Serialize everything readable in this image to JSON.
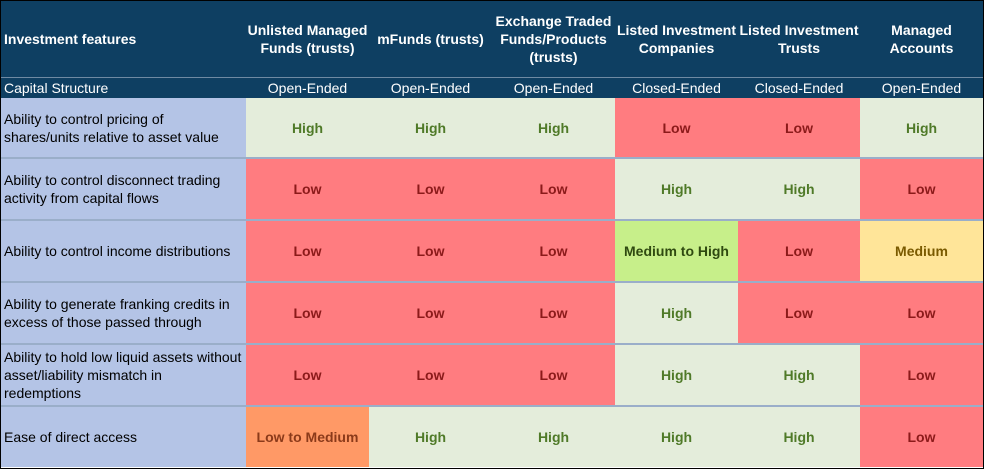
{
  "table": {
    "headers": [
      "Investment features",
      "Unlisted Managed Funds (trusts)",
      "mFunds (trusts)",
      "Exchange Traded Funds/Products (trusts)",
      "Listed Investment Companies",
      "Listed Investment Trusts",
      "Managed Accounts"
    ],
    "capital_structure": {
      "label": "Capital Structure",
      "values": [
        "Open-Ended",
        "Open-Ended",
        "Open-Ended",
        "Closed-Ended",
        "Closed-Ended",
        "Open-Ended"
      ]
    },
    "rows": [
      {
        "feature": "Ability to control pricing of shares/units relative to asset value",
        "values": [
          "High",
          "High",
          "High",
          "Low",
          "Low",
          "High"
        ]
      },
      {
        "feature": "Ability to control disconnect trading activity from capital flows",
        "values": [
          "Low",
          "Low",
          "Low",
          "High",
          "High",
          "Low"
        ]
      },
      {
        "feature": "Ability to control income distributions",
        "values": [
          "Low",
          "Low",
          "Low",
          "Medium to High",
          "Low",
          "Medium"
        ]
      },
      {
        "feature": "Ability to generate franking credits in excess of those passed through",
        "values": [
          "Low",
          "Low",
          "Low",
          "High",
          "Low",
          "Low"
        ]
      },
      {
        "feature": "Ability to hold low liquid assets without asset/liability mismatch in redemptions",
        "values": [
          "Low",
          "Low",
          "Low",
          "High",
          "High",
          "Low"
        ]
      },
      {
        "feature": "Ease of direct access",
        "values": [
          "Low to Medium",
          "High",
          "High",
          "High",
          "High",
          "Low"
        ]
      }
    ],
    "colors": {
      "header_bg": "#0e3f62",
      "feature_bg": "#b4c4e6",
      "high_bg": "#e4eddb",
      "low_bg": "#ff7c80",
      "medium_to_high_bg": "#c7ef8a",
      "medium_bg": "#ffe599",
      "low_to_medium_bg": "#ff9966"
    }
  }
}
